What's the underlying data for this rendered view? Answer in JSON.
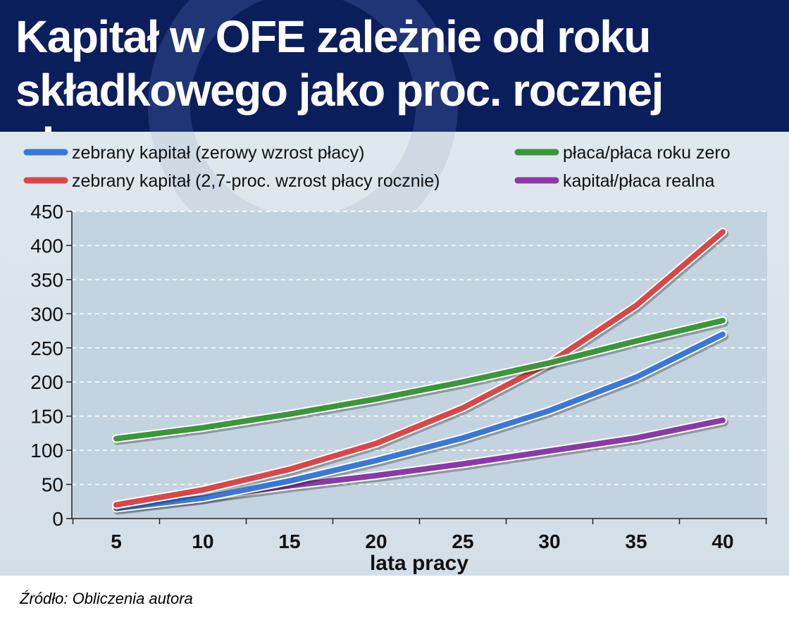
{
  "header": {
    "title": "Kapitał w OFE zależnie od roku\nskładkowego jako proc. rocznej płacy"
  },
  "footer": {
    "source": "Źródło: Obliczenia autora"
  },
  "chart_data": {
    "type": "line",
    "title": "Kapitał w OFE zależnie od roku składkowego jako proc. rocznej płacy",
    "xlabel": "lata pracy",
    "ylabel": "",
    "x": [
      5,
      10,
      15,
      20,
      25,
      30,
      35,
      40
    ],
    "xticks": [
      "5",
      "10",
      "15",
      "20",
      "25",
      "30",
      "35",
      "40"
    ],
    "ylim": [
      0,
      450
    ],
    "yticks": [
      "0",
      "50",
      "100",
      "150",
      "200",
      "250",
      "300",
      "350",
      "400",
      "450"
    ],
    "grid": "horizontal-dashed",
    "legend_position": "top",
    "series": [
      {
        "name": "zebrany kapitał (zerowy wzrost płacy)",
        "color": "#3a78d8",
        "values": [
          15,
          30,
          55,
          85,
          118,
          158,
          207,
          270
        ]
      },
      {
        "name": "zebrany kapitał (2,7-proc. wzrost płacy rocznie)",
        "color": "#d84848",
        "values": [
          20,
          42,
          72,
          110,
          162,
          228,
          312,
          420
        ]
      },
      {
        "name": "płaca/płaca roku zero",
        "color": "#3c963c",
        "values": [
          117,
          133,
          153,
          175,
          200,
          228,
          260,
          290
        ]
      },
      {
        "name": "kapitał/płaca realna",
        "color": "#8a3aa6",
        "values": [
          17,
          31,
          48,
          63,
          80,
          99,
          118,
          144
        ]
      }
    ]
  }
}
